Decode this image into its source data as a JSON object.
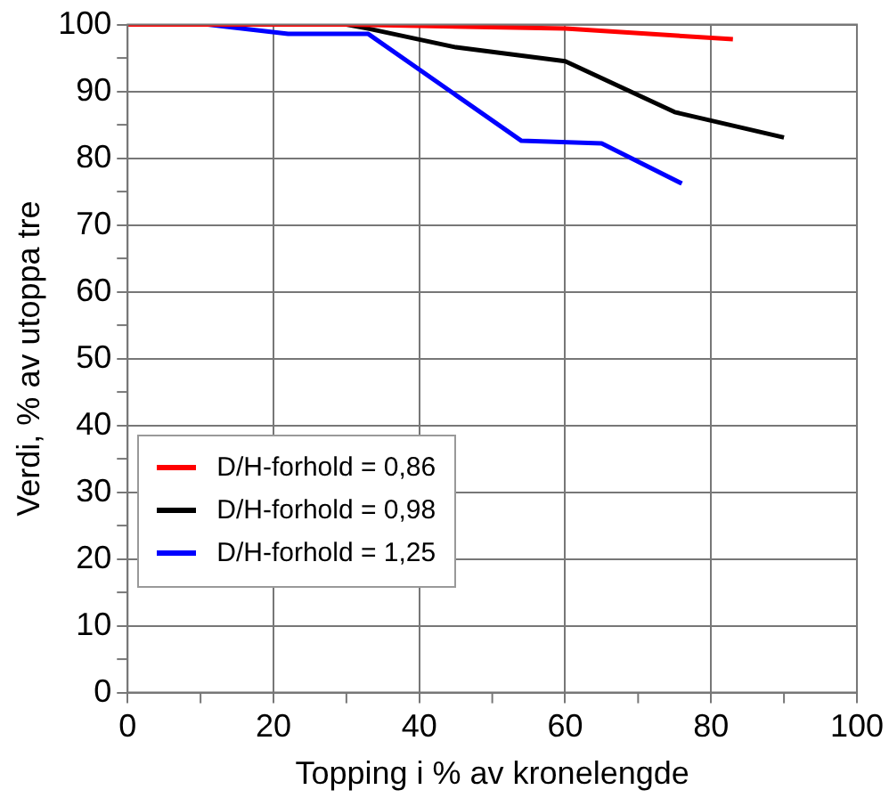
{
  "chart_data": {
    "type": "line",
    "xlabel": "Topping i % av kronelengde",
    "ylabel": "Verdi, % av utoppa tre",
    "xlim": [
      0,
      100
    ],
    "ylim": [
      0,
      100
    ],
    "xticks": [
      0,
      {
        "value": 10,
        "label": null
      },
      20,
      {
        "value": 30,
        "label": null
      },
      40,
      {
        "value": 50,
        "label": null
      },
      60,
      {
        "value": 70,
        "label": null
      },
      80,
      {
        "value": 90,
        "label": null
      },
      100
    ],
    "yticks": [
      0,
      {
        "value": 5,
        "label": null
      },
      10,
      {
        "value": 15,
        "label": null
      },
      20,
      {
        "value": 25,
        "label": null
      },
      30,
      {
        "value": 35,
        "label": null
      },
      40,
      {
        "value": 45,
        "label": null
      },
      50,
      {
        "value": 55,
        "label": null
      },
      60,
      {
        "value": 65,
        "label": null
      },
      70,
      {
        "value": 75,
        "label": null
      },
      80,
      {
        "value": 85,
        "label": null
      },
      90,
      {
        "value": 95,
        "label": null
      },
      100
    ],
    "grid": true,
    "legend": "bottom left",
    "marker": "none",
    "line_style": "solid",
    "series": [
      {
        "name": "D/H-forhold = 0,86",
        "color": "#ff0000",
        "x": [
          0,
          30,
          60,
          83
        ],
        "values": [
          100,
          100,
          99.4,
          97.8
        ]
      },
      {
        "name": "D/H-forhold = 0,98",
        "color": "#000000",
        "x": [
          0,
          30,
          33,
          45,
          60,
          75,
          90
        ],
        "values": [
          100,
          100,
          99.4,
          96.6,
          94.5,
          86.9,
          83.1
        ]
      },
      {
        "name": "D/H-forhold = 1,25",
        "color": "#0000ff",
        "x": [
          0,
          11,
          22,
          33,
          54,
          65,
          76
        ],
        "values": [
          100,
          100,
          98.6,
          98.6,
          82.6,
          82.2,
          76.2
        ]
      }
    ]
  }
}
